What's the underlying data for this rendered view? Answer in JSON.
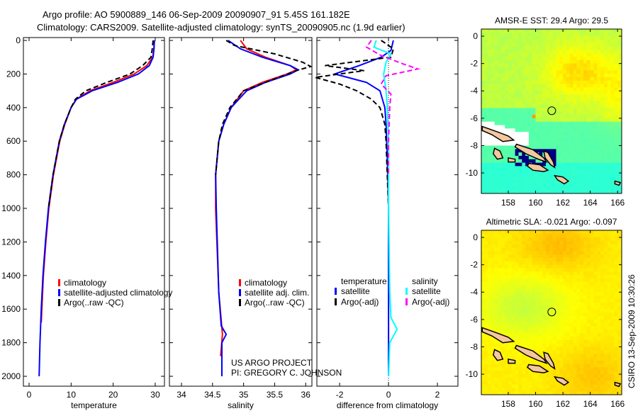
{
  "title": {
    "line1": "Argo profile: AO 5900889_146 06-Sep-2009 20090907_91 5.45S 161.182E",
    "line2": "Climatology: CARS2009. Satellite-adjusted climatology: synTS_20090905.nc (1.9d earlier)"
  },
  "credit": {
    "line1": "US ARGO PROJECT",
    "line2": "PI: GREGORY C. JOHNSON"
  },
  "timestamp": "CSIRO 13-Sep-2009 10:30:26",
  "colors": {
    "climatology": "#ff0000",
    "satellite": "#0000ff",
    "argo": "#000000",
    "sal_satellite": "#00ffff",
    "sal_argo": "#ff00ff"
  },
  "chart_data": [
    {
      "type": "line",
      "xlabel": "temperature",
      "ylabel": "",
      "xlim": [
        -1.35,
        32.2
      ],
      "ylim": [
        2059,
        -17
      ],
      "xticks": [
        0,
        10,
        20,
        30
      ],
      "yticks": [
        0,
        200,
        400,
        600,
        800,
        1000,
        1200,
        1400,
        1600,
        1800,
        2000
      ],
      "legend": {
        "placement": "lower-center",
        "entries": [
          "climatology",
          "satellite-adjusted climatology",
          "Argo(..raw -QC)"
        ]
      },
      "series": [
        {
          "name": "climatology",
          "color": "#ff0000",
          "dash": false,
          "depth": [
            0,
            50,
            100,
            150,
            200,
            250,
            300,
            350,
            400,
            500,
            600,
            800,
            1000,
            1200,
            1400,
            1680
          ],
          "values": [
            29.8,
            29.7,
            29.4,
            28.0,
            25.0,
            20.0,
            14.5,
            11.2,
            10.0,
            8.5,
            7.3,
            5.8,
            4.7,
            4.0,
            3.4,
            2.9
          ]
        },
        {
          "name": "satellite-adjusted climatology",
          "color": "#0000ff",
          "dash": false,
          "depth": [
            0,
            50,
            100,
            150,
            200,
            250,
            300,
            350,
            400,
            500,
            600,
            800,
            1000,
            1200,
            1400,
            1600,
            1800,
            2000
          ],
          "values": [
            29.8,
            29.7,
            29.5,
            28.6,
            26.0,
            21.0,
            15.0,
            11.3,
            10.0,
            8.4,
            7.2,
            5.7,
            4.6,
            3.9,
            3.3,
            2.9,
            2.6,
            2.4
          ]
        },
        {
          "name": "Argo(..raw -QC)",
          "color": "#000000",
          "dash": true,
          "depth": [
            0,
            50,
            100,
            150,
            200,
            250,
            300,
            350,
            400,
            500,
            600,
            800,
            1000
          ],
          "values": [
            29.5,
            29.3,
            29.0,
            27.0,
            24.0,
            18.5,
            13.5,
            11.0,
            10.0,
            8.4,
            7.2,
            5.7,
            4.6
          ]
        }
      ]
    },
    {
      "type": "line",
      "xlabel": "salinity",
      "ylabel": "",
      "xlim": [
        33.806,
        36.1
      ],
      "ylim": [
        2059,
        -17
      ],
      "xticks": [
        34,
        34.5,
        35,
        35.5,
        36
      ],
      "yticks": [
        0,
        200,
        400,
        600,
        800,
        1000,
        1200,
        1400,
        1600,
        1800,
        2000
      ],
      "legend": {
        "placement": "lower-center",
        "entries": [
          "climatology",
          "satellite adj. clim.",
          "Argo(..raw -QC)"
        ]
      },
      "series": [
        {
          "name": "climatology",
          "color": "#ff0000",
          "dash": false,
          "depth": [
            0,
            50,
            100,
            150,
            175,
            200,
            250,
            300,
            400,
            500,
            600,
            800,
            1000,
            1500,
            1750,
            1880
          ],
          "values": [
            34.95,
            35.05,
            35.35,
            35.75,
            35.85,
            35.7,
            35.3,
            35.0,
            34.8,
            34.68,
            34.6,
            34.55,
            34.55,
            34.6,
            34.66,
            34.63
          ]
        },
        {
          "name": "satellite adj. clim.",
          "color": "#0000ff",
          "dash": false,
          "depth": [
            0,
            50,
            100,
            150,
            175,
            200,
            250,
            300,
            400,
            500,
            600,
            800,
            1000,
            1500,
            1700,
            1750,
            1800,
            2000
          ],
          "values": [
            34.75,
            34.95,
            35.3,
            35.75,
            35.88,
            35.75,
            35.35,
            35.05,
            34.8,
            34.68,
            34.6,
            34.55,
            34.56,
            34.6,
            34.64,
            34.72,
            34.65,
            34.65
          ]
        },
        {
          "name": "Argo(..raw -QC)",
          "color": "#000000",
          "dash": true,
          "depth": [
            0,
            30,
            80,
            130,
            155,
            180,
            250,
            300,
            400,
            500,
            600,
            800
          ],
          "values": [
            34.72,
            34.85,
            35.5,
            35.95,
            36.08,
            35.85,
            35.35,
            35.0,
            34.78,
            34.66,
            34.6,
            34.55
          ]
        }
      ]
    },
    {
      "type": "line",
      "xlabel": "difference from climatology",
      "ylabel": "",
      "xlim": [
        -2.93,
        2.84
      ],
      "ylim": [
        2059,
        -17
      ],
      "xticks": [
        -2,
        0,
        2
      ],
      "yticks": [
        0,
        200,
        400,
        600,
        800,
        1000,
        1200,
        1400,
        1600,
        1800,
        2000
      ],
      "legend": {
        "placement": "lower-center",
        "headers": [
          "temperature",
          "salinity"
        ],
        "entries": [
          "satellite",
          "Argo(-adj)",
          "satellite",
          "Argo(-adj)"
        ]
      },
      "series": [
        {
          "name": "temperature satellite",
          "color": "#0000ff",
          "dash": false,
          "depth": [
            0,
            60,
            100,
            150,
            200,
            250,
            300,
            400,
            500,
            700,
            1000,
            1500,
            2000
          ],
          "values": [
            0.2,
            0.1,
            -0.3,
            -1.2,
            -2.2,
            -0.9,
            -0.35,
            -0.15,
            -0.1,
            -0.05,
            0,
            0,
            0
          ]
        },
        {
          "name": "temperature Argo(-adj)",
          "color": "#000000",
          "dash": true,
          "depth": [
            0,
            50,
            100,
            150,
            180,
            220,
            260,
            300,
            350,
            400,
            500,
            600,
            800,
            1000
          ],
          "values": [
            -0.3,
            0.2,
            0.1,
            -2.6,
            -1.0,
            -3.0,
            -2.0,
            -1.3,
            -0.7,
            -0.35,
            -0.15,
            -0.1,
            -0.05,
            0
          ]
        },
        {
          "name": "salinity satellite",
          "color": "#00ffff",
          "dash": false,
          "depth": [
            0,
            40,
            80,
            130,
            200,
            300,
            400,
            600,
            1000,
            1500,
            1650,
            1720,
            1800,
            2000
          ],
          "values": [
            -0.5,
            -0.6,
            0.1,
            -0.1,
            -0.2,
            -0.1,
            -0.05,
            0,
            0,
            0.05,
            0.1,
            0.35,
            0.05,
            0
          ]
        },
        {
          "name": "salinity Argo(-adj)",
          "color": "#ff00ff",
          "dash": true,
          "depth": [
            0,
            40,
            90,
            140,
            170,
            210,
            260,
            320,
            400,
            600,
            800
          ],
          "values": [
            -0.7,
            -0.9,
            -0.3,
            0.6,
            1.2,
            -0.1,
            -0.3,
            0.1,
            0.05,
            0,
            0
          ]
        }
      ]
    },
    {
      "type": "heatmap",
      "title": "AMSR-E SST: 29.4 Argo: 29.5",
      "xlim": [
        156.03,
        166.3
      ],
      "ylim": [
        -11.5,
        0.52
      ],
      "xticks": [
        158,
        160,
        162,
        164,
        166
      ],
      "yticks": [
        0,
        -2,
        -4,
        -6,
        -8,
        -10
      ],
      "marker": {
        "lon": 161.182,
        "lat": -5.45
      }
    },
    {
      "type": "heatmap",
      "title": "Altimetric SLA: -0.021 Argo: -0.097",
      "xlim": [
        156.03,
        166.3
      ],
      "ylim": [
        -11.5,
        0.52
      ],
      "xticks": [
        158,
        160,
        162,
        164,
        166
      ],
      "yticks": [
        0,
        -2,
        -4,
        -6,
        -8,
        -10
      ],
      "marker": {
        "lon": 161.182,
        "lat": -5.45
      }
    }
  ]
}
